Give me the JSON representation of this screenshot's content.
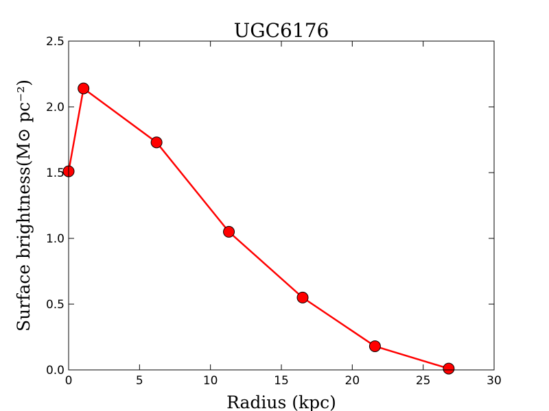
{
  "chart_data": {
    "type": "line",
    "title": "UGC6176",
    "xlabel": "Radius (kpc)",
    "ylabel": "Surface brightness(M⊙ pc⁻²)",
    "xlim": [
      0,
      30
    ],
    "ylim": [
      0,
      2.5
    ],
    "xticks": [
      0,
      5,
      10,
      15,
      20,
      25,
      30
    ],
    "yticks": [
      0.0,
      0.5,
      1.0,
      1.5,
      2.0,
      2.5
    ],
    "xtick_labels": [
      "0",
      "5",
      "10",
      "15",
      "20",
      "25",
      "30"
    ],
    "ytick_labels": [
      "0.0",
      "0.5",
      "1.0",
      "1.5",
      "2.0",
      "2.5"
    ],
    "grid": false,
    "series": [
      {
        "color": "#ff0000",
        "marker_color": "#ff0000",
        "x": [
          0.0,
          1.05,
          6.2,
          11.3,
          16.5,
          21.6,
          26.8
        ],
        "y": [
          1.51,
          2.14,
          1.73,
          1.05,
          0.55,
          0.18,
          0.01
        ]
      }
    ]
  }
}
